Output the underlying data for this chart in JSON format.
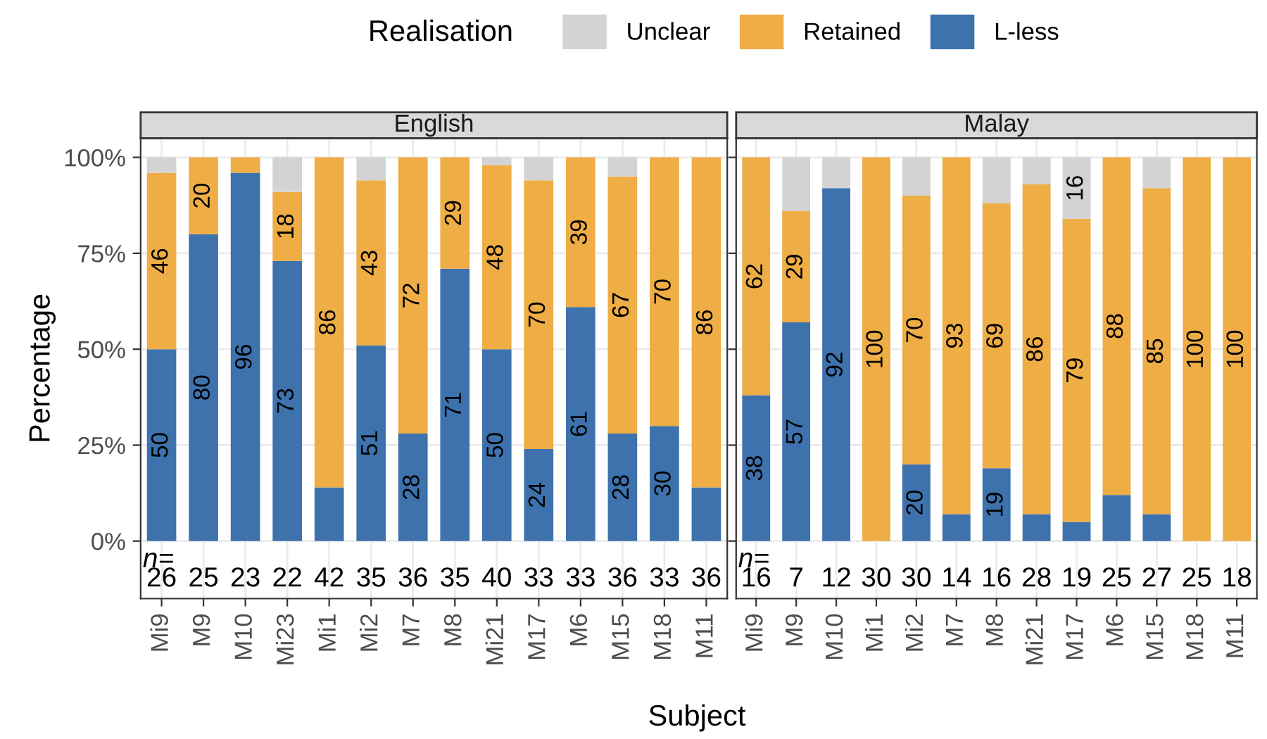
{
  "chart_data": [
    {
      "type": "bar",
      "title": "English",
      "stacked": true,
      "legend": "top",
      "legend_title": "Realisation",
      "ylabel": "Percentage",
      "xlabel": "Subject",
      "grid": true,
      "categories": [
        "Mi9",
        "M9",
        "M10",
        "Mi23",
        "Mi1",
        "Mi2",
        "M7",
        "M8",
        "Mi21",
        "M17",
        "M6",
        "M15",
        "M18",
        "M11"
      ],
      "ylim": [
        -15,
        105
      ],
      "yticks": [
        {
          "value": 0,
          "label": "0%"
        },
        {
          "value": 25,
          "label": "25%"
        },
        {
          "value": 50,
          "label": "50%"
        },
        {
          "value": 75,
          "label": "75%"
        },
        {
          "value": 100,
          "label": "100%"
        }
      ],
      "series": [
        {
          "name": "L-less",
          "color": "#3d72ad",
          "values": [
            50,
            80,
            96,
            73,
            14,
            51,
            28,
            71,
            50,
            24,
            61,
            28,
            30,
            14
          ],
          "value_labels": [
            "50",
            "80",
            "96",
            "73",
            null,
            "51",
            "28",
            "71",
            "50",
            "24",
            "61",
            "28",
            "30",
            null
          ]
        },
        {
          "name": "Retained",
          "color": "#eead45",
          "values": [
            46,
            20,
            4,
            18,
            86,
            43,
            72,
            29,
            48,
            70,
            39,
            67,
            70,
            86
          ],
          "value_labels": [
            "46",
            "20",
            null,
            "18",
            "86",
            "43",
            "72",
            "29",
            "48",
            "70",
            "39",
            "67",
            "70",
            "86"
          ]
        },
        {
          "name": "Unclear",
          "color": "#d3d3d3",
          "values": [
            4,
            0,
            0,
            9,
            0,
            6,
            0,
            0,
            2,
            6,
            0,
            5,
            0,
            0
          ],
          "value_labels": [
            null,
            null,
            null,
            null,
            null,
            null,
            null,
            null,
            null,
            null,
            null,
            null,
            null,
            null
          ]
        }
      ],
      "annotations": [
        "n=",
        "26",
        "25",
        "23",
        "22",
        "42",
        "35",
        "36",
        "35",
        "40",
        "33",
        "33",
        "36",
        "33",
        "36"
      ]
    },
    {
      "type": "bar",
      "title": "Malay",
      "stacked": true,
      "grid": true,
      "tick_labels": "x",
      "categories": [
        "Mi9",
        "M9",
        "M10",
        "Mi1",
        "Mi2",
        "M7",
        "M8",
        "Mi21",
        "M17",
        "M6",
        "M15",
        "M18",
        "M11"
      ],
      "ylim": [
        -15,
        105
      ],
      "yticks": [
        {
          "value": 0,
          "label": null
        },
        {
          "value": 25,
          "label": null
        },
        {
          "value": 50,
          "label": null
        },
        {
          "value": 75,
          "label": null
        },
        {
          "value": 100,
          "label": null
        }
      ],
      "series": [
        {
          "color": "#3d72ad",
          "values": [
            38,
            57,
            92,
            0,
            20,
            7,
            19,
            7,
            5,
            12,
            7,
            0,
            0
          ],
          "value_labels": [
            "38",
            "57",
            "92",
            null,
            "20",
            null,
            "19",
            null,
            null,
            null,
            null,
            null,
            null
          ]
        },
        {
          "color": "#eead45",
          "values": [
            62,
            29,
            0,
            100,
            70,
            93,
            69,
            86,
            79,
            88,
            85,
            100,
            100
          ],
          "value_labels": [
            "62",
            "29",
            null,
            "100",
            "70",
            "93",
            "69",
            "86",
            "79",
            "88",
            "85",
            "100",
            "100"
          ]
        },
        {
          "color": "#d3d3d3",
          "values": [
            0,
            14,
            8,
            0,
            10,
            0,
            12,
            7,
            16,
            0,
            8,
            0,
            0
          ],
          "value_labels": [
            null,
            null,
            null,
            null,
            null,
            null,
            null,
            null,
            "16",
            null,
            null,
            null,
            null
          ]
        }
      ],
      "annotations": [
        "n=",
        "16",
        "7",
        "12",
        "30",
        "30",
        "14",
        "16",
        "28",
        "19",
        "25",
        "27",
        "25",
        "18"
      ]
    }
  ]
}
